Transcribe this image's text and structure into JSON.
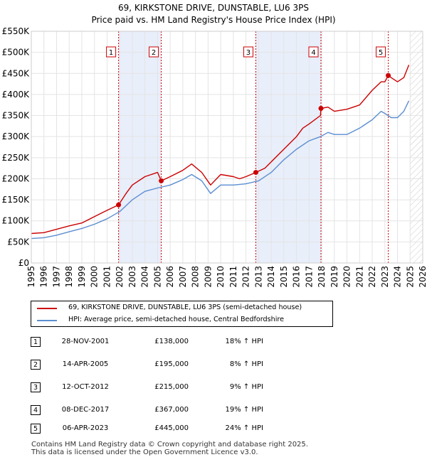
{
  "chart_data": {
    "type": "line",
    "title": "69, KIRKSTONE DRIVE, DUNSTABLE, LU6 3PS",
    "subtitle": "Price paid vs. HM Land Registry's House Price Index (HPI)",
    "xlim": [
      1995,
      2026
    ],
    "ylim": [
      0,
      550000
    ],
    "x_ticks": [
      1995,
      1996,
      1997,
      1998,
      1999,
      2000,
      2001,
      2002,
      2003,
      2004,
      2005,
      2006,
      2007,
      2008,
      2009,
      2010,
      2011,
      2012,
      2013,
      2014,
      2015,
      2016,
      2017,
      2018,
      2019,
      2020,
      2021,
      2022,
      2023,
      2024,
      2025,
      2026
    ],
    "y_ticks": [
      {
        "value": 0,
        "label": "£0"
      },
      {
        "value": 50000,
        "label": "£50K"
      },
      {
        "value": 100000,
        "label": "£100K"
      },
      {
        "value": 150000,
        "label": "£150K"
      },
      {
        "value": 200000,
        "label": "£200K"
      },
      {
        "value": 250000,
        "label": "£250K"
      },
      {
        "value": 300000,
        "label": "£300K"
      },
      {
        "value": 350000,
        "label": "£350K"
      },
      {
        "value": 400000,
        "label": "£400K"
      },
      {
        "value": 450000,
        "label": "£450K"
      },
      {
        "value": 500000,
        "label": "£500K"
      },
      {
        "value": 550000,
        "label": "£550K"
      }
    ],
    "future_hatch_from": 2025.0,
    "shaded_spans": [
      [
        2001.91,
        2005.29
      ],
      [
        2012.78,
        2017.94
      ]
    ],
    "series": [
      {
        "name": "69, KIRKSTONE DRIVE, DUNSTABLE, LU6 3PS (semi-detached house)",
        "color": "#cc0000",
        "x": [
          1995.0,
          1996.0,
          1997.0,
          1998.0,
          1999.0,
          2000.0,
          2001.0,
          2001.91,
          2002.5,
          2003.0,
          2004.0,
          2005.0,
          2005.29,
          2006.0,
          2007.0,
          2007.7,
          2008.5,
          2009.2,
          2010.0,
          2011.0,
          2011.5,
          2012.0,
          2012.78,
          2013.5,
          2014.0,
          2015.0,
          2016.0,
          2016.5,
          2017.0,
          2017.9,
          2017.94,
          2018.5,
          2019.0,
          2020.0,
          2021.0,
          2022.0,
          2022.7,
          2023.0,
          2023.27,
          2023.5,
          2024.0,
          2024.5,
          2024.9
        ],
        "y": [
          70000,
          72000,
          80000,
          88000,
          95000,
          110000,
          125000,
          138000,
          165000,
          185000,
          205000,
          215000,
          195000,
          205000,
          220000,
          235000,
          215000,
          185000,
          210000,
          205000,
          200000,
          205000,
          215000,
          225000,
          240000,
          270000,
          300000,
          320000,
          330000,
          350000,
          367000,
          370000,
          360000,
          365000,
          375000,
          410000,
          430000,
          430000,
          445000,
          440000,
          430000,
          440000,
          470000
        ]
      },
      {
        "name": "HPI: Average price, semi-detached house, Central Bedfordshire",
        "color": "#5b8ed1",
        "x": [
          1995.0,
          1996.0,
          1997.0,
          1998.0,
          1999.0,
          2000.0,
          2001.0,
          2002.0,
          2003.0,
          2004.0,
          2005.0,
          2006.0,
          2007.0,
          2007.7,
          2008.5,
          2009.2,
          2010.0,
          2011.0,
          2012.0,
          2013.0,
          2014.0,
          2015.0,
          2016.0,
          2017.0,
          2017.9,
          2018.5,
          2019.0,
          2020.0,
          2021.0,
          2022.0,
          2022.7,
          2023.0,
          2023.5,
          2024.0,
          2024.5,
          2024.9
        ],
        "y": [
          58000,
          60000,
          66000,
          74000,
          82000,
          92000,
          105000,
          122000,
          150000,
          170000,
          178000,
          185000,
          198000,
          210000,
          195000,
          165000,
          185000,
          185000,
          188000,
          195000,
          215000,
          245000,
          270000,
          290000,
          300000,
          310000,
          305000,
          305000,
          320000,
          340000,
          360000,
          355000,
          345000,
          345000,
          360000,
          385000
        ]
      }
    ],
    "sales": [
      {
        "num": "1",
        "x": 2001.91,
        "y": 138000
      },
      {
        "num": "2",
        "x": 2005.29,
        "y": 195000
      },
      {
        "num": "3",
        "x": 2012.78,
        "y": 215000
      },
      {
        "num": "4",
        "x": 2017.94,
        "y": 367000
      },
      {
        "num": "5",
        "x": 2023.27,
        "y": 445000
      }
    ]
  },
  "legend": {
    "property_label": "69, KIRKSTONE DRIVE, DUNSTABLE, LU6 3PS (semi-detached house)",
    "hpi_label": "HPI: Average price, semi-detached house, Central Bedfordshire",
    "property_color": "#cc0000",
    "hpi_color": "#5b8ed1"
  },
  "table": {
    "rows": [
      {
        "num": "1",
        "date": "28-NOV-2001",
        "price": "£138,000",
        "hpi": "18% ↑ HPI"
      },
      {
        "num": "2",
        "date": "14-APR-2005",
        "price": "£195,000",
        "hpi": "8% ↑ HPI"
      },
      {
        "num": "3",
        "date": "12-OCT-2012",
        "price": "£215,000",
        "hpi": "9% ↑ HPI"
      },
      {
        "num": "4",
        "date": "08-DEC-2017",
        "price": "£367,000",
        "hpi": "19% ↑ HPI"
      },
      {
        "num": "5",
        "date": "06-APR-2023",
        "price": "£445,000",
        "hpi": "24% ↑ HPI"
      }
    ]
  },
  "footer": {
    "line1": "Contains HM Land Registry data © Crown copyright and database right 2025.",
    "line2": "This data is licensed under the Open Government Licence v3.0."
  }
}
